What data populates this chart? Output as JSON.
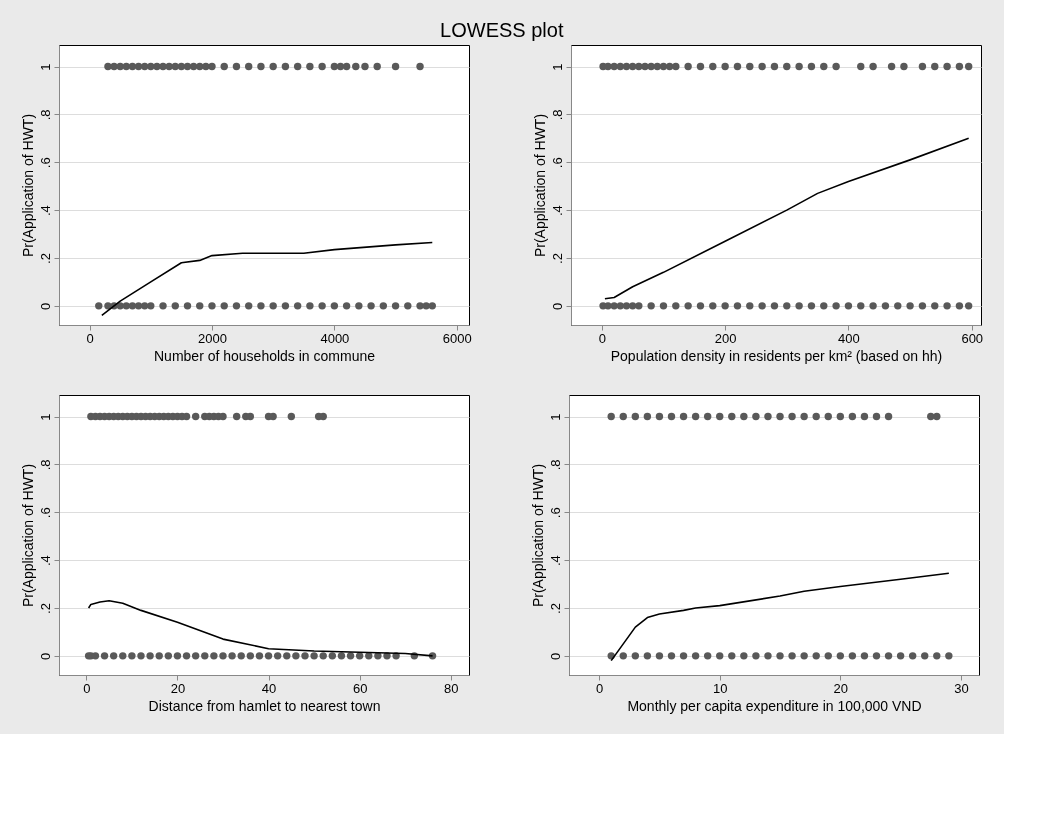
{
  "chart_data": [
    {
      "type": "scatter",
      "title": "LOWESS plot",
      "legend": false,
      "xlabel": "Number of households in commune",
      "ylabel": "Pr(Application of HWT)",
      "xlim": [
        -500,
        6200
      ],
      "xticks": [
        0,
        2000,
        4000,
        6000
      ],
      "ylim": [
        -0.08,
        1.09
      ],
      "yticks": [
        0,
        {
          "value": 0.2,
          "label": ".2"
        },
        {
          "value": 0.4,
          "label": ".4"
        },
        {
          "value": 0.6,
          "label": ".6"
        },
        {
          "value": 0.8,
          "label": ".8"
        },
        1
      ],
      "grid": "y",
      "series": [
        {
          "color": "#595959",
          "marker": "circle",
          "x": [
            300,
            400,
            500,
            600,
            700,
            800,
            900,
            1000,
            1100,
            1200,
            1300,
            1400,
            1500,
            1600,
            1700,
            1800,
            1900,
            2000,
            2200,
            2400,
            2600,
            2800,
            3000,
            3200,
            3400,
            3600,
            3800,
            4000,
            4100,
            4200,
            4350,
            4500,
            4700,
            5000,
            5400
          ],
          "values": [
            1,
            1,
            1,
            1,
            1,
            1,
            1,
            1,
            1,
            1,
            1,
            1,
            1,
            1,
            1,
            1,
            1,
            1,
            1,
            1,
            1,
            1,
            1,
            1,
            1,
            1,
            1,
            1,
            1,
            1,
            1,
            1,
            1,
            1,
            1
          ]
        },
        {
          "color": "#595959",
          "marker": "circle",
          "x": [
            150,
            300,
            400,
            500,
            600,
            700,
            800,
            900,
            1000,
            1200,
            1400,
            1600,
            1800,
            2000,
            2200,
            2400,
            2600,
            2800,
            3000,
            3200,
            3400,
            3600,
            3800,
            4000,
            4200,
            4400,
            4600,
            4800,
            5000,
            5200,
            5400,
            5500,
            5600
          ],
          "values": [
            0,
            0,
            0,
            0,
            0,
            0,
            0,
            0,
            0,
            0,
            0,
            0,
            0,
            0,
            0,
            0,
            0,
            0,
            0,
            0,
            0,
            0,
            0,
            0,
            0,
            0,
            0,
            0,
            0,
            0,
            0,
            0,
            0
          ]
        },
        {
          "type": "line",
          "color": "#000000",
          "line_style": "solid",
          "x": [
            200,
            500,
            1000,
            1500,
            1800,
            2000,
            2500,
            3000,
            3500,
            4000,
            5000,
            5600
          ],
          "values": [
            -0.04,
            0.02,
            0.1,
            0.18,
            0.19,
            0.21,
            0.22,
            0.22,
            0.22,
            0.235,
            0.255,
            0.265
          ]
        }
      ]
    },
    {
      "type": "scatter",
      "legend": false,
      "xlabel": "Population density in residents per km² (based on hh)",
      "ylabel": "Pr(Application of HWT)",
      "xlim": [
        -50,
        615
      ],
      "xticks": [
        0,
        200,
        400,
        600
      ],
      "ylim": [
        -0.08,
        1.09
      ],
      "yticks": [
        0,
        {
          "value": 0.2,
          "label": ".2"
        },
        {
          "value": 0.4,
          "label": ".4"
        },
        {
          "value": 0.6,
          "label": ".6"
        },
        {
          "value": 0.8,
          "label": ".8"
        },
        1
      ],
      "grid": "y",
      "series": [
        {
          "color": "#595959",
          "marker": "circle",
          "x": [
            2,
            10,
            20,
            30,
            40,
            50,
            60,
            70,
            80,
            90,
            100,
            110,
            120,
            140,
            160,
            180,
            200,
            220,
            240,
            260,
            280,
            300,
            320,
            340,
            360,
            380,
            420,
            440,
            470,
            490,
            520,
            540,
            560,
            580,
            595
          ],
          "values": [
            1,
            1,
            1,
            1,
            1,
            1,
            1,
            1,
            1,
            1,
            1,
            1,
            1,
            1,
            1,
            1,
            1,
            1,
            1,
            1,
            1,
            1,
            1,
            1,
            1,
            1,
            1,
            1,
            1,
            1,
            1,
            1,
            1,
            1,
            1
          ]
        },
        {
          "color": "#595959",
          "marker": "circle",
          "x": [
            2,
            10,
            20,
            30,
            40,
            50,
            60,
            80,
            100,
            120,
            140,
            160,
            180,
            200,
            220,
            240,
            260,
            280,
            300,
            320,
            340,
            360,
            380,
            400,
            420,
            440,
            460,
            480,
            500,
            520,
            540,
            560,
            580,
            595
          ],
          "values": [
            0,
            0,
            0,
            0,
            0,
            0,
            0,
            0,
            0,
            0,
            0,
            0,
            0,
            0,
            0,
            0,
            0,
            0,
            0,
            0,
            0,
            0,
            0,
            0,
            0,
            0,
            0,
            0,
            0,
            0,
            0,
            0,
            0,
            0
          ]
        },
        {
          "type": "line",
          "color": "#000000",
          "line_style": "solid",
          "x": [
            5,
            20,
            50,
            100,
            200,
            300,
            350,
            400,
            500,
            595
          ],
          "values": [
            0.03,
            0.035,
            0.08,
            0.14,
            0.27,
            0.4,
            0.47,
            0.52,
            0.61,
            0.7
          ]
        }
      ]
    },
    {
      "type": "scatter",
      "legend": false,
      "xlabel": "Distance from hamlet to nearest town",
      "ylabel": "Pr(Application of HWT)",
      "xlim": [
        -6,
        84
      ],
      "xticks": [
        0,
        20,
        40,
        60,
        80
      ],
      "ylim": [
        -0.08,
        1.09
      ],
      "yticks": [
        0,
        {
          "value": 0.2,
          "label": ".2"
        },
        {
          "value": 0.4,
          "label": ".4"
        },
        {
          "value": 0.6,
          "label": ".6"
        },
        {
          "value": 0.8,
          "label": ".8"
        },
        1
      ],
      "grid": "y",
      "series": [
        {
          "color": "#595959",
          "marker": "circle",
          "x": [
            1,
            2,
            3,
            4,
            5,
            6,
            7,
            8,
            9,
            10,
            11,
            12,
            13,
            14,
            15,
            16,
            17,
            18,
            19,
            20,
            21,
            22,
            24,
            26,
            27,
            28,
            29,
            30,
            33,
            35,
            36,
            40,
            41,
            45,
            51,
            52
          ],
          "values": [
            1,
            1,
            1,
            1,
            1,
            1,
            1,
            1,
            1,
            1,
            1,
            1,
            1,
            1,
            1,
            1,
            1,
            1,
            1,
            1,
            1,
            1,
            1,
            1,
            1,
            1,
            1,
            1,
            1,
            1,
            1,
            1,
            1,
            1,
            1,
            1
          ]
        },
        {
          "color": "#595959",
          "marker": "circle",
          "x": [
            0.5,
            1,
            2,
            4,
            6,
            8,
            10,
            12,
            14,
            16,
            18,
            20,
            22,
            24,
            26,
            28,
            30,
            32,
            34,
            36,
            38,
            40,
            42,
            44,
            46,
            48,
            50,
            52,
            54,
            56,
            58,
            60,
            62,
            64,
            66,
            68,
            72,
            76
          ],
          "values": [
            0,
            0,
            0,
            0,
            0,
            0,
            0,
            0,
            0,
            0,
            0,
            0,
            0,
            0,
            0,
            0,
            0,
            0,
            0,
            0,
            0,
            0,
            0,
            0,
            0,
            0,
            0,
            0,
            0,
            0,
            0,
            0,
            0,
            0,
            0,
            0,
            0,
            0
          ]
        },
        {
          "type": "line",
          "color": "#000000",
          "line_style": "solid",
          "x": [
            0.5,
            1,
            3,
            5,
            8,
            12,
            20,
            30,
            40,
            50,
            60,
            70,
            76
          ],
          "values": [
            0.2,
            0.215,
            0.225,
            0.23,
            0.22,
            0.19,
            0.14,
            0.07,
            0.03,
            0.02,
            0.015,
            0.01,
            0
          ]
        }
      ]
    },
    {
      "type": "scatter",
      "legend": false,
      "xlabel": "Monthly per capita expenditure in 100,000 VND",
      "ylabel": "Pr(Application of HWT)",
      "xlim": [
        -2.5,
        31.5
      ],
      "xticks": [
        0,
        10,
        20,
        30
      ],
      "ylim": [
        -0.08,
        1.09
      ],
      "yticks": [
        0,
        {
          "value": 0.2,
          "label": ".2"
        },
        {
          "value": 0.4,
          "label": ".4"
        },
        {
          "value": 0.6,
          "label": ".6"
        },
        {
          "value": 0.8,
          "label": ".8"
        },
        1
      ],
      "grid": "y",
      "series": [
        {
          "color": "#595959",
          "marker": "circle",
          "x": [
            1,
            2,
            3,
            4,
            5,
            6,
            7,
            8,
            9,
            10,
            11,
            12,
            13,
            14,
            15,
            16,
            17,
            18,
            19,
            20,
            21,
            22,
            23,
            24,
            27.5,
            28
          ],
          "values": [
            1,
            1,
            1,
            1,
            1,
            1,
            1,
            1,
            1,
            1,
            1,
            1,
            1,
            1,
            1,
            1,
            1,
            1,
            1,
            1,
            1,
            1,
            1,
            1,
            1,
            1
          ]
        },
        {
          "color": "#595959",
          "marker": "circle",
          "x": [
            1,
            2,
            3,
            4,
            5,
            6,
            7,
            8,
            9,
            10,
            11,
            12,
            13,
            14,
            15,
            16,
            17,
            18,
            19,
            20,
            21,
            22,
            23,
            24,
            25,
            26,
            27,
            28,
            29
          ],
          "values": [
            0,
            0,
            0,
            0,
            0,
            0,
            0,
            0,
            0,
            0,
            0,
            0,
            0,
            0,
            0,
            0,
            0,
            0,
            0,
            0,
            0,
            0,
            0,
            0,
            0,
            0,
            0,
            0,
            0
          ]
        },
        {
          "type": "line",
          "color": "#000000",
          "line_style": "solid",
          "x": [
            1,
            2,
            3,
            4,
            5,
            7,
            8,
            10,
            15,
            17,
            20,
            25,
            29
          ],
          "values": [
            -0.02,
            0.05,
            0.12,
            0.16,
            0.175,
            0.19,
            0.2,
            0.21,
            0.25,
            0.27,
            0.29,
            0.32,
            0.345
          ]
        }
      ]
    }
  ]
}
